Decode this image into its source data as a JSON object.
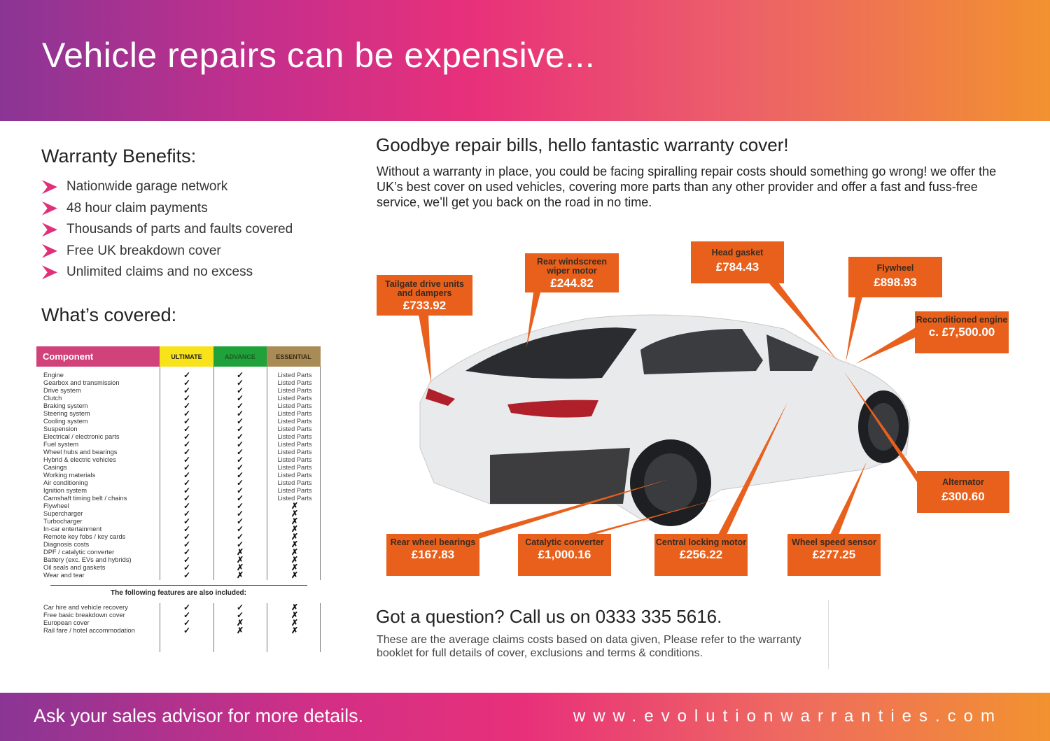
{
  "header": {
    "title": "Vehicle repairs can be expensive..."
  },
  "benefits": {
    "title": "Warranty Benefits:",
    "items": [
      "Nationwide garage network",
      "48 hour claim payments",
      "Thousands of parts and faults covered",
      "Free UK breakdown cover",
      "Unlimited claims and no excess"
    ]
  },
  "covered": {
    "title": "What’s covered:",
    "columns": [
      {
        "label": "Component",
        "color": "#d1417a"
      },
      {
        "label": "ULTIMATE",
        "color": "#f8e21a"
      },
      {
        "label": "ADVANCE",
        "color": "#1fa23a"
      },
      {
        "label": "ESSENTIAL",
        "color": "#a88b55"
      }
    ],
    "rows": [
      [
        "Engine",
        "✓",
        "✓",
        "Listed Parts"
      ],
      [
        "Gearbox and transmission",
        "✓",
        "✓",
        "Listed Parts"
      ],
      [
        "Drive system",
        "✓",
        "✓",
        "Listed Parts"
      ],
      [
        "Clutch",
        "✓",
        "✓",
        "Listed Parts"
      ],
      [
        "Braking system",
        "✓",
        "✓",
        "Listed Parts"
      ],
      [
        "Steering system",
        "✓",
        "✓",
        "Listed Parts"
      ],
      [
        "Cooling system",
        "✓",
        "✓",
        "Listed Parts"
      ],
      [
        "Suspension",
        "✓",
        "✓",
        "Listed Parts"
      ],
      [
        "Electrical / electronic parts",
        "✓",
        "✓",
        "Listed Parts"
      ],
      [
        "Fuel system",
        "✓",
        "✓",
        "Listed Parts"
      ],
      [
        "Wheel hubs and bearings",
        "✓",
        "✓",
        "Listed Parts"
      ],
      [
        "Hybrid & electric vehicles",
        "✓",
        "✓",
        "Listed Parts"
      ],
      [
        "Casings",
        "✓",
        "✓",
        "Listed Parts"
      ],
      [
        "Working materials",
        "✓",
        "✓",
        "Listed Parts"
      ],
      [
        "Air conditioning",
        "✓",
        "✓",
        "Listed Parts"
      ],
      [
        "Ignition system",
        "✓",
        "✓",
        "Listed Parts"
      ],
      [
        "Camshaft timing belt / chains",
        "✓",
        "✓",
        "Listed Parts"
      ],
      [
        "Flywheel",
        "✓",
        "✓",
        "✗"
      ],
      [
        "Supercharger",
        "✓",
        "✓",
        "✗"
      ],
      [
        "Turbocharger",
        "✓",
        "✓",
        "✗"
      ],
      [
        "In-car entertainment",
        "✓",
        "✓",
        "✗"
      ],
      [
        "Remote key fobs / key cards",
        "✓",
        "✓",
        "✗"
      ],
      [
        "Diagnosis costs",
        "✓",
        "✓",
        "✗"
      ],
      [
        "DPF / catalytic converter",
        "✓",
        "✗",
        "✗"
      ],
      [
        "Battery (exc. EVs and hybrids)",
        "✓",
        "✗",
        "✗"
      ],
      [
        "Oil seals and gaskets",
        "✓",
        "✗",
        "✗"
      ],
      [
        "Wear and tear",
        "✓",
        "✗",
        "✗"
      ]
    ],
    "extras_title": "The following features are also included:",
    "extras": [
      [
        "Car hire and vehicle recovery",
        "✓",
        "✓",
        "✗"
      ],
      [
        "Free basic breakdown cover",
        "✓",
        "✓",
        "✗"
      ],
      [
        "European cover",
        "✓",
        "✗",
        "✗"
      ],
      [
        "Rail fare / hotel accommodation",
        "✓",
        "✗",
        "✗"
      ]
    ]
  },
  "main": {
    "title": "Goodbye repair bills, hello fantastic warranty cover!",
    "intro": "Without a warranty in place, you could be facing spiralling repair costs should something go wrong! we offer the UK’s best cover on used vehicles, covering more parts than any other provider and offer a fast and fuss-free service, we’ll get you back on the road in no time."
  },
  "callouts": [
    {
      "label": "Tailgate drive units and dampers",
      "price": "£733.92"
    },
    {
      "label": "Rear windscreen wiper motor",
      "price": "£244.82"
    },
    {
      "label": "Head gasket",
      "price": "£784.43"
    },
    {
      "label": "Flywheel",
      "price": "£898.93"
    },
    {
      "label": "Reconditioned engine",
      "price": "c. £7,500.00"
    },
    {
      "label": "Alternator",
      "price": "£300.60"
    },
    {
      "label": "Rear wheel bearings",
      "price": "£167.83"
    },
    {
      "label": "Catalytic converter",
      "price": "£1,000.16"
    },
    {
      "label": "Central locking motor",
      "price": "£256.22"
    },
    {
      "label": "Wheel speed sensor",
      "price": "£277.25"
    }
  ],
  "question": {
    "title": "Got a question? Call us on 0333 335 5616.",
    "text": "These are the average claims costs based on data given, Please refer to the warranty booklet for full details of cover, exclusions and terms & conditions."
  },
  "footer": {
    "ask": "Ask your sales advisor for more details.",
    "url": "www.evolutionwarranties.com"
  },
  "colors": {
    "callout": "#e8601c",
    "accent": "#e0307a"
  }
}
